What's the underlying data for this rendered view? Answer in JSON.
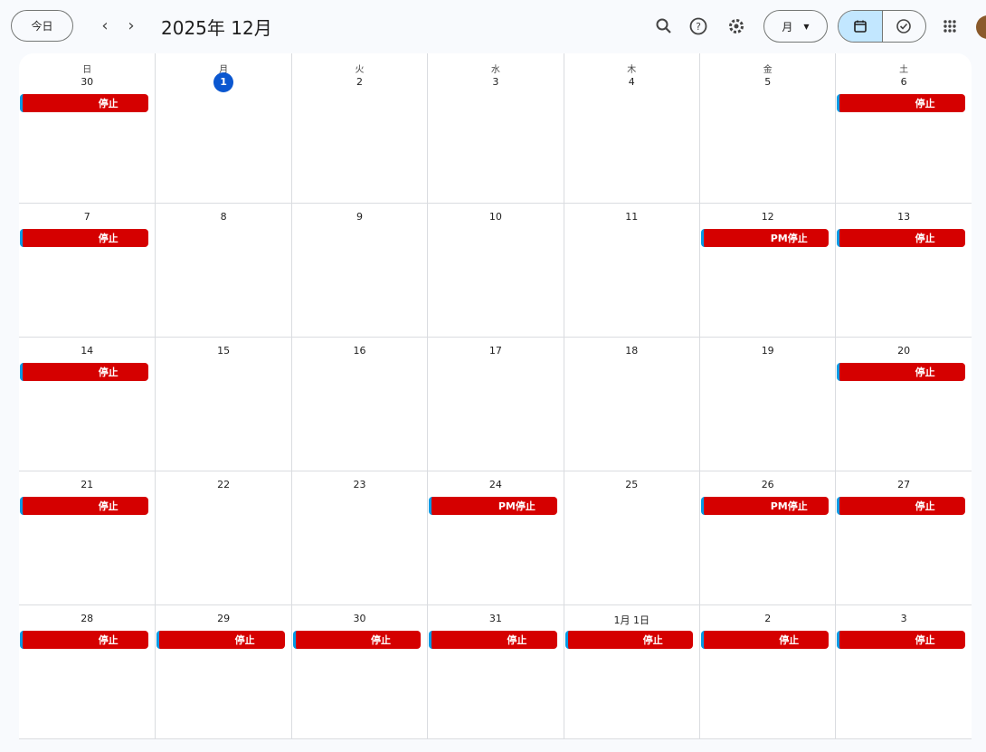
{
  "header": {
    "today_label": "今日",
    "prev_icon": "chevron-left-icon",
    "next_icon": "chevron-right-icon",
    "title": "2025年 12月",
    "view_select": "月",
    "icons": [
      "search-icon",
      "help-icon",
      "gear-icon",
      "calendar-icon",
      "tasks-icon",
      "apps-grid-icon"
    ]
  },
  "colors": {
    "event": "#d50000",
    "event_stripe": "#039be5",
    "today": "#0b57d0",
    "view_toggle_active": "#c2e7ff"
  },
  "weekdays": [
    "日",
    "月",
    "火",
    "水",
    "木",
    "金",
    "土"
  ],
  "weeks": [
    [
      {
        "d": "30",
        "e": "停止"
      },
      {
        "d": "1",
        "today": true
      },
      {
        "d": "2"
      },
      {
        "d": "3"
      },
      {
        "d": "4"
      },
      {
        "d": "5"
      },
      {
        "d": "6",
        "e": "停止"
      }
    ],
    [
      {
        "d": "7",
        "e": "停止"
      },
      {
        "d": "8"
      },
      {
        "d": "9"
      },
      {
        "d": "10"
      },
      {
        "d": "11"
      },
      {
        "d": "12",
        "e": "PM停止"
      },
      {
        "d": "13",
        "e": "停止"
      }
    ],
    [
      {
        "d": "14",
        "e": "停止"
      },
      {
        "d": "15"
      },
      {
        "d": "16"
      },
      {
        "d": "17"
      },
      {
        "d": "18"
      },
      {
        "d": "19"
      },
      {
        "d": "20",
        "e": "停止"
      }
    ],
    [
      {
        "d": "21",
        "e": "停止"
      },
      {
        "d": "22"
      },
      {
        "d": "23"
      },
      {
        "d": "24",
        "e": "PM停止"
      },
      {
        "d": "25"
      },
      {
        "d": "26",
        "e": "PM停止"
      },
      {
        "d": "27",
        "e": "停止"
      }
    ],
    [
      {
        "d": "28",
        "e": "停止"
      },
      {
        "d": "29",
        "e": "停止"
      },
      {
        "d": "30",
        "e": "停止"
      },
      {
        "d": "31",
        "e": "停止"
      },
      {
        "d": "1月 1日",
        "e": "停止"
      },
      {
        "d": "2",
        "e": "停止"
      },
      {
        "d": "3",
        "e": "停止"
      }
    ]
  ]
}
